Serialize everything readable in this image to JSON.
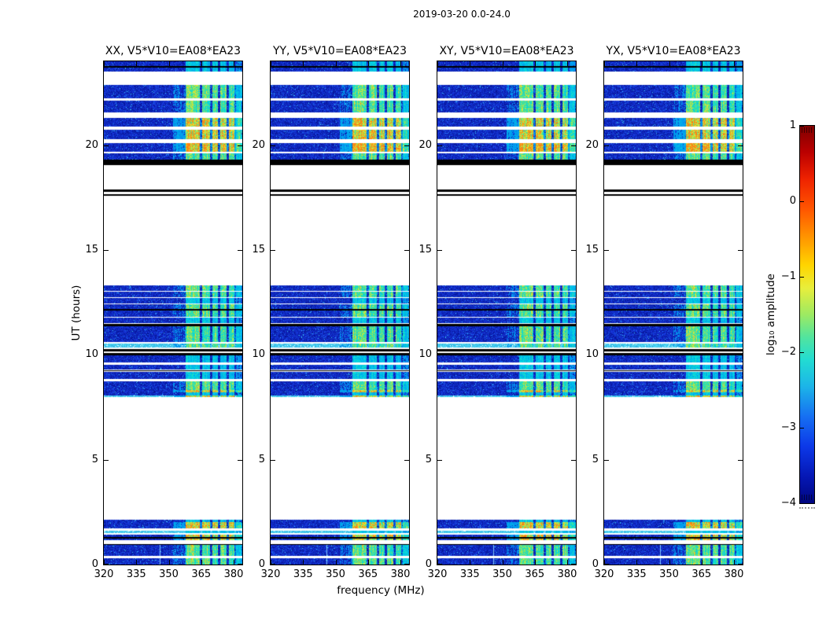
{
  "figure": {
    "title": "2019-03-20 0.0-24.0"
  },
  "axes": {
    "xlabel": "frequency (MHz)",
    "ylabel": "UT (hours)",
    "x_ticks": [
      "320",
      "335",
      "350",
      "365",
      "380"
    ],
    "y_ticks": [
      "0",
      "5",
      "10",
      "15",
      "20"
    ]
  },
  "panels": [
    {
      "id": "xx",
      "title": "XX, V5*V10=EA08*EA23",
      "seed": 101
    },
    {
      "id": "yy",
      "title": "YY, V5*V10=EA08*EA23",
      "seed": 202
    },
    {
      "id": "xy",
      "title": "XY, V5*V10=EA08*EA23",
      "seed": 303
    },
    {
      "id": "yx",
      "title": "YX, V5*V10=EA08*EA23",
      "seed": 404
    }
  ],
  "colorbar": {
    "label": "log₁₀ amplitude",
    "ticks": [
      "1",
      "0",
      "−1",
      "−2",
      "−3",
      "−4"
    ],
    "colormap": "jet",
    "value_range": [
      -4,
      1
    ]
  },
  "chart_data": {
    "type": "heatmap",
    "title": "2019-03-20 0.0-24.0",
    "x": {
      "label": "frequency (MHz)",
      "range": [
        320,
        384
      ],
      "ticks": [
        320,
        335,
        350,
        365,
        380
      ]
    },
    "y": {
      "label": "UT (hours)",
      "range": [
        0,
        24
      ],
      "ticks": [
        0,
        5,
        10,
        15,
        20
      ]
    },
    "colorbar": {
      "label": "log10 amplitude",
      "ticks": [
        1,
        0,
        -1,
        -2,
        -3,
        -4
      ],
      "colormap": "jet"
    },
    "panel_titles": [
      "XX, V5*V10=EA08*EA23",
      "YY, V5*V10=EA08*EA23",
      "XY, V5*V10=EA08*EA23",
      "YX, V5*V10=EA08*EA23"
    ],
    "base_colors": {
      "noise_floor": "#0a1ea0",
      "speckle": "#1e6eeb",
      "bright_row": "#46c8e6",
      "flagged": "#000000",
      "no_data": "#ffffff"
    },
    "time_segments": [
      {
        "h0": 23.52,
        "h1": 24.0,
        "kind": "data",
        "rfi": 1
      },
      {
        "h0": 22.25,
        "h1": 22.86,
        "kind": "data",
        "rfi": 2
      },
      {
        "h0": 21.55,
        "h1": 22.12,
        "kind": "data",
        "rfi": 2
      },
      {
        "h0": 20.9,
        "h1": 21.3,
        "kind": "data",
        "rfi": 3
      },
      {
        "h0": 20.3,
        "h1": 20.72,
        "kind": "data",
        "rfi": 3
      },
      {
        "h0": 19.7,
        "h1": 20.1,
        "kind": "data",
        "rfi": 4
      },
      {
        "h0": 19.33,
        "h1": 19.62,
        "kind": "data",
        "rfi": 2
      },
      {
        "h0": 19.05,
        "h1": 19.33,
        "kind": "black"
      },
      {
        "h0": 17.78,
        "h1": 17.9,
        "kind": "black"
      },
      {
        "h0": 17.57,
        "h1": 17.68,
        "kind": "black"
      },
      {
        "h0": 13.05,
        "h1": 13.32,
        "kind": "data",
        "rfi": 2
      },
      {
        "h0": 12.75,
        "h1": 13.02,
        "kind": "data",
        "rfi": 2
      },
      {
        "h0": 12.45,
        "h1": 12.72,
        "kind": "data",
        "rfi": 1
      },
      {
        "h0": 12.2,
        "h1": 12.42,
        "kind": "data",
        "rfi": 2
      },
      {
        "h0": 12.13,
        "h1": 12.2,
        "kind": "black"
      },
      {
        "h0": 11.82,
        "h1": 12.13,
        "kind": "data",
        "rfi": 2
      },
      {
        "h0": 11.5,
        "h1": 11.79,
        "kind": "data",
        "rfi": 1
      },
      {
        "h0": 11.37,
        "h1": 11.48,
        "kind": "black"
      },
      {
        "h0": 10.63,
        "h1": 11.37,
        "kind": "data",
        "rfi": 2
      },
      {
        "h0": 10.36,
        "h1": 10.52,
        "kind": "bright",
        "rfi": 2
      },
      {
        "h0": 10.16,
        "h1": 10.28,
        "kind": "black"
      },
      {
        "h0": 9.96,
        "h1": 10.09,
        "kind": "black"
      },
      {
        "h0": 9.63,
        "h1": 9.96,
        "kind": "data",
        "rfi": 1
      },
      {
        "h0": 9.31,
        "h1": 9.53,
        "kind": "data",
        "rfi": 1
      },
      {
        "h0": 9.21,
        "h1": 9.28,
        "kind": "black"
      },
      {
        "h0": 8.86,
        "h1": 9.19,
        "kind": "data",
        "rfi": 1
      },
      {
        "h0": 8.31,
        "h1": 8.74,
        "kind": "data",
        "rfi": 2
      },
      {
        "h0": 8.22,
        "h1": 8.31,
        "kind": "data",
        "rfi": 3
      },
      {
        "h0": 8.06,
        "h1": 8.22,
        "kind": "data",
        "rfi": 1
      },
      {
        "h0": 7.97,
        "h1": 8.06,
        "kind": "bright",
        "rfi": 3
      },
      {
        "h0": 2.04,
        "h1": 2.14,
        "kind": "data",
        "rfi": 1
      },
      {
        "h0": 1.85,
        "h1": 2.04,
        "kind": "data",
        "rfi": 3
      },
      {
        "h0": 1.73,
        "h1": 1.82,
        "kind": "data",
        "rfi": 3
      },
      {
        "h0": 1.5,
        "h1": 1.63,
        "kind": "bright",
        "rfi": 1
      },
      {
        "h0": 1.33,
        "h1": 1.43,
        "kind": "data",
        "rfi": 3
      },
      {
        "h0": 1.15,
        "h1": 1.28,
        "kind": "data",
        "rfi": 3
      },
      {
        "h0": 0.92,
        "h1": 0.98,
        "kind": "black"
      },
      {
        "h0": 0.43,
        "h1": 0.92,
        "kind": "data",
        "rfi": 2,
        "vline": true
      },
      {
        "h0": 0.0,
        "h1": 0.3,
        "kind": "data",
        "rfi": 2,
        "vline": true
      }
    ],
    "separator_lines_h": [
      23.76,
      1.305
    ],
    "rfi_profile_mhz": [
      [
        352.0,
        357.5,
        0.22
      ],
      [
        357.5,
        364.3,
        1.0
      ],
      [
        364.3,
        365.4,
        0.18
      ],
      [
        365.4,
        369.0,
        0.95
      ],
      [
        369.0,
        370.1,
        0.18
      ],
      [
        370.1,
        372.5,
        0.9
      ],
      [
        372.5,
        373.6,
        0.16
      ],
      [
        373.6,
        376.5,
        0.93
      ],
      [
        376.5,
        377.6,
        0.16
      ],
      [
        377.6,
        380.2,
        0.88
      ],
      [
        380.2,
        381.0,
        0.25
      ],
      [
        381.0,
        383.6,
        0.55
      ],
      [
        383.6,
        384.0,
        0.3
      ]
    ],
    "rfi_level_scale": {
      "1": 0.33,
      "2": 0.6,
      "3": 0.88,
      "4": 1.0
    },
    "vertical_line_mhz": 345.7,
    "grid": false,
    "legend": false
  }
}
